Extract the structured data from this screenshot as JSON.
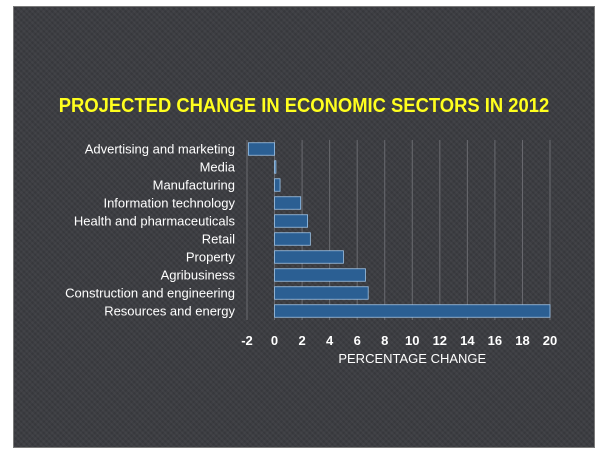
{
  "chart_data": {
    "type": "bar",
    "orientation": "horizontal",
    "title": "PROJECTED CHANGE IN ECONOMIC SECTORS IN 2012",
    "xlabel": "PERCENTAGE CHANGE",
    "ylabel": "",
    "categories": [
      "Advertising and marketing",
      "Media",
      "Manufacturing",
      "Information technology",
      "Health and pharmaceuticals",
      "Retail",
      "Property",
      "Agribusiness",
      "Construction and engineering",
      "Resources and energy"
    ],
    "values": [
      -1.9,
      0.1,
      0.4,
      1.9,
      2.4,
      2.6,
      5.0,
      6.6,
      6.8,
      20.0
    ],
    "xlim": [
      -2,
      20
    ],
    "xticks": [
      "-2",
      "0",
      "2",
      "4",
      "6",
      "8",
      "10",
      "12",
      "14",
      "16",
      "18",
      "20"
    ],
    "grid": true,
    "legend": "none",
    "colors": {
      "bar": "#2b5f93",
      "title": "#ffff1e",
      "background": "#3a3b40",
      "text": "#ffffff"
    }
  }
}
